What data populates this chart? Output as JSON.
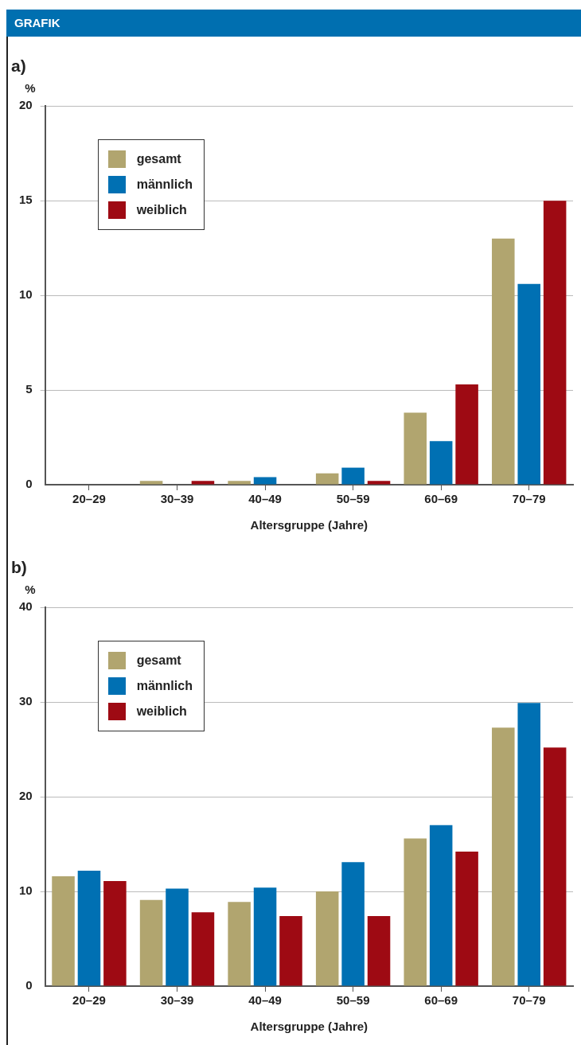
{
  "chart_data": [
    {
      "type": "bar",
      "title": "a)",
      "annotations": [
        "GRAFIK"
      ],
      "ylabel": "%",
      "xlabel": "Altersgruppe (Jahre)",
      "categories": [
        "20–29",
        "30–39",
        "40–49",
        "50–59",
        "60–69",
        "70–79"
      ],
      "series": [
        {
          "name": "gesamt",
          "color": "#b1a56f",
          "values": [
            0,
            0.2,
            0.2,
            0.6,
            3.8,
            13.0
          ]
        },
        {
          "name": "männlich",
          "color": "#0070b3",
          "values": [
            0,
            0,
            0.4,
            0.9,
            2.3,
            10.6
          ]
        },
        {
          "name": "weiblich",
          "color": "#9e0a13",
          "values": [
            0,
            0.2,
            0,
            0.2,
            5.3,
            15.0
          ]
        }
      ],
      "ylim": [
        0,
        20
      ],
      "yticks": [
        0,
        5,
        10,
        15,
        20
      ],
      "grid": "y",
      "legend": "top left"
    },
    {
      "type": "bar",
      "title": "b)",
      "ylabel": "%",
      "xlabel": "Altersgruppe (Jahre)",
      "categories": [
        "20–29",
        "30–39",
        "40–49",
        "50–59",
        "60–69",
        "70–79"
      ],
      "series": [
        {
          "name": "gesamt",
          "color": "#b1a56f",
          "values": [
            11.6,
            9.1,
            8.9,
            10.0,
            15.6,
            27.3
          ]
        },
        {
          "name": "männlich",
          "color": "#0070b3",
          "values": [
            12.2,
            10.3,
            10.4,
            13.1,
            17.0,
            29.9
          ]
        },
        {
          "name": "weiblich",
          "color": "#9e0a13",
          "values": [
            11.1,
            7.8,
            7.4,
            7.4,
            14.2,
            25.2
          ]
        }
      ],
      "ylim": [
        0,
        40
      ],
      "yticks": [
        0,
        10,
        20,
        30,
        40
      ],
      "grid": "y",
      "legend": "top left"
    }
  ]
}
